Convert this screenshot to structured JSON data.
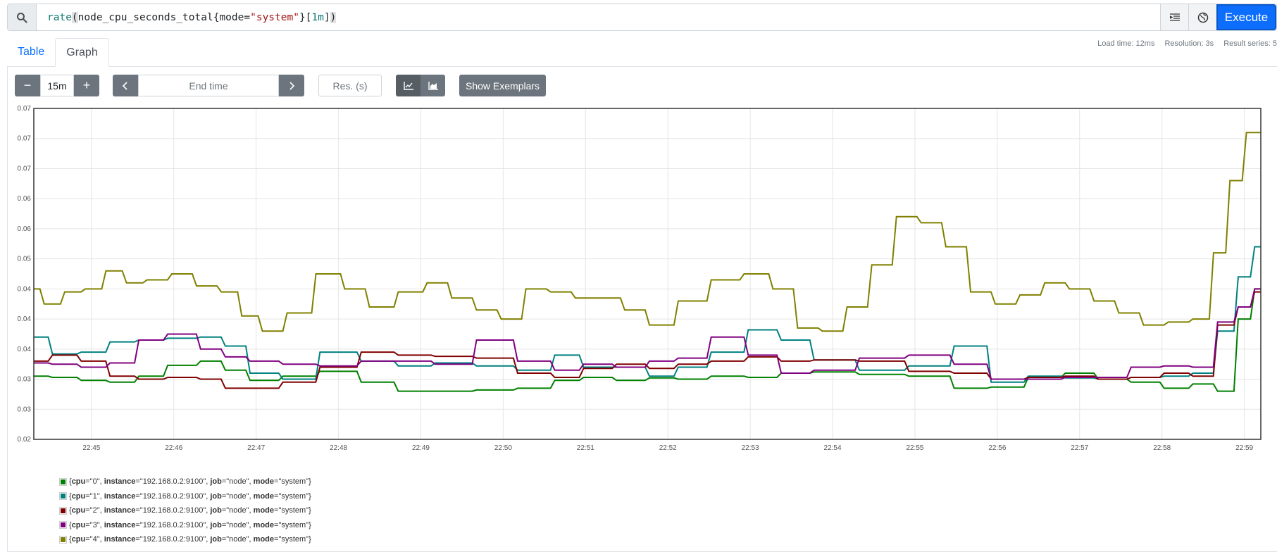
{
  "query": {
    "fn": "rate",
    "metric": "node_cpu_seconds_total",
    "label_key": "mode",
    "label_value": "\"system\"",
    "duration": "1m",
    "execute_label": "Execute",
    "icons": [
      "search-icon",
      "format-icon",
      "metrics-explorer-icon"
    ]
  },
  "tabs": [
    {
      "label": "Table"
    },
    {
      "label": "Graph",
      "active": true
    }
  ],
  "stats": {
    "load_time": "Load time: 12ms",
    "resolution": "Resolution: 3s",
    "result_series": "Result series: 5"
  },
  "controls": {
    "minus": "−",
    "plus": "+",
    "range": "15m",
    "end_time_placeholder": "End time",
    "resolution_placeholder": "Res. (s)",
    "exemplars_label": "Show Exemplars",
    "icons": [
      "chevron-left-icon",
      "chevron-right-icon",
      "line-chart-icon",
      "stacked-chart-icon"
    ]
  },
  "legend": [
    {
      "cpu": "\"0\"",
      "instance": "\"192.168.0.2:9100\"",
      "job": "\"node\"",
      "mode": "\"system\"",
      "color": "#008000"
    },
    {
      "cpu": "\"1\"",
      "instance": "\"192.168.0.2:9100\"",
      "job": "\"node\"",
      "mode": "\"system\"",
      "color": "#008080"
    },
    {
      "cpu": "\"2\"",
      "instance": "\"192.168.0.2:9100\"",
      "job": "\"node\"",
      "mode": "\"system\"",
      "color": "#800000"
    },
    {
      "cpu": "\"3\"",
      "instance": "\"192.168.0.2:9100\"",
      "job": "\"node\"",
      "mode": "\"system\"",
      "color": "#800080"
    },
    {
      "cpu": "\"4\"",
      "instance": "\"192.168.0.2:9100\"",
      "job": "\"node\"",
      "mode": "\"system\"",
      "color": "#808000"
    }
  ],
  "chart_data": {
    "type": "line",
    "y_tick_labels": [
      "0.07",
      "0.07",
      "0.07",
      "0.06",
      "0.06",
      "0.05",
      "0.04",
      "0.04",
      "0.04",
      "0.03",
      "0.03",
      "0.02"
    ],
    "x_tick_labels": [
      "22:45",
      "22:46",
      "22:47",
      "22:48",
      "22:49",
      "22:50",
      "22:51",
      "22:52",
      "22:53",
      "22:54",
      "22:55",
      "22:56",
      "22:57",
      "22:58",
      "22:59"
    ],
    "x_range_minutes": [
      44.3,
      59.2
    ],
    "ylim": [
      0.02,
      0.075
    ],
    "grid": true,
    "series": [
      {
        "color": "#008000",
        "x": [
          44.3,
          44.7,
          45.0,
          45.4,
          45.7,
          46.1,
          46.5,
          46.7,
          47.1,
          47.5,
          48.0,
          48.5,
          48.9,
          49.4,
          49.9,
          50.4,
          50.8,
          51.1,
          51.6,
          51.9,
          52.3,
          52.7,
          53.2,
          53.5,
          54.0,
          54.6,
          55.2,
          55.7,
          56.1,
          56.6,
          57.0,
          57.4,
          57.8,
          58.2,
          58.5,
          58.8,
          59.0,
          59.2
        ],
        "y": [
          0.0305,
          0.0303,
          0.0298,
          0.0295,
          0.0305,
          0.0323,
          0.033,
          0.0315,
          0.0298,
          0.0305,
          0.0313,
          0.0295,
          0.028,
          0.028,
          0.0282,
          0.0285,
          0.0298,
          0.0303,
          0.0298,
          0.0302,
          0.03,
          0.0305,
          0.0303,
          0.031,
          0.0312,
          0.0308,
          0.0305,
          0.0285,
          0.0287,
          0.0303,
          0.031,
          0.03,
          0.0295,
          0.0285,
          0.0292,
          0.028,
          0.04,
          0.045
        ]
      },
      {
        "color": "#008080",
        "x": [
          44.3,
          44.7,
          45.0,
          45.4,
          45.7,
          46.1,
          46.5,
          46.7,
          47.1,
          47.5,
          48.0,
          48.5,
          48.9,
          49.4,
          49.9,
          50.4,
          50.8,
          51.1,
          51.6,
          51.9,
          52.3,
          52.7,
          53.2,
          53.5,
          54.0,
          54.6,
          55.2,
          55.7,
          56.1,
          56.6,
          57.0,
          57.4,
          57.8,
          58.2,
          58.5,
          58.8,
          59.0,
          59.2
        ],
        "y": [
          0.037,
          0.0342,
          0.0345,
          0.0362,
          0.0365,
          0.0368,
          0.037,
          0.0355,
          0.031,
          0.03,
          0.0345,
          0.033,
          0.0322,
          0.0327,
          0.0322,
          0.0315,
          0.034,
          0.032,
          0.032,
          0.0305,
          0.032,
          0.0345,
          0.0382,
          0.0365,
          0.0332,
          0.0315,
          0.0322,
          0.0355,
          0.0295,
          0.0305,
          0.0302,
          0.03,
          0.0303,
          0.0305,
          0.031,
          0.038,
          0.047,
          0.052
        ]
      },
      {
        "color": "#800000",
        "x": [
          44.3,
          44.7,
          45.0,
          45.4,
          45.7,
          46.1,
          46.5,
          46.7,
          47.1,
          47.5,
          48.0,
          48.5,
          48.9,
          49.4,
          49.9,
          50.4,
          50.8,
          51.1,
          51.6,
          51.9,
          52.3,
          52.7,
          53.2,
          53.5,
          54.0,
          54.6,
          55.2,
          55.7,
          56.1,
          56.6,
          57.0,
          57.4,
          57.8,
          58.2,
          58.5,
          58.8,
          59.0,
          59.2
        ],
        "y": [
          0.033,
          0.034,
          0.033,
          0.0305,
          0.03,
          0.0303,
          0.03,
          0.0285,
          0.0285,
          0.0295,
          0.032,
          0.0345,
          0.034,
          0.0338,
          0.0335,
          0.031,
          0.0303,
          0.0318,
          0.0325,
          0.0318,
          0.0325,
          0.033,
          0.0337,
          0.033,
          0.0332,
          0.033,
          0.0313,
          0.031,
          0.03,
          0.0303,
          0.0305,
          0.03,
          0.0303,
          0.031,
          0.0305,
          0.039,
          0.042,
          0.0445
        ]
      },
      {
        "color": "#800080",
        "x": [
          44.3,
          44.7,
          45.0,
          45.4,
          45.7,
          46.1,
          46.5,
          46.7,
          47.1,
          47.5,
          48.0,
          48.5,
          48.9,
          49.4,
          49.9,
          50.4,
          50.8,
          51.1,
          51.6,
          51.9,
          52.3,
          52.7,
          53.2,
          53.5,
          54.0,
          54.6,
          55.2,
          55.7,
          56.1,
          56.6,
          57.0,
          57.4,
          57.8,
          58.2,
          58.5,
          58.8,
          59.0,
          59.2
        ],
        "y": [
          0.0327,
          0.0325,
          0.032,
          0.0327,
          0.0365,
          0.0375,
          0.035,
          0.0337,
          0.033,
          0.0325,
          0.0322,
          0.033,
          0.033,
          0.0325,
          0.0365,
          0.033,
          0.0315,
          0.0325,
          0.032,
          0.033,
          0.0335,
          0.037,
          0.034,
          0.031,
          0.0315,
          0.0335,
          0.034,
          0.0325,
          0.03,
          0.03,
          0.0303,
          0.0303,
          0.032,
          0.0322,
          0.032,
          0.0395,
          0.042,
          0.045
        ]
      },
      {
        "color": "#808000",
        "x": [
          44.3,
          44.5,
          44.8,
          45.0,
          45.3,
          45.5,
          45.8,
          46.1,
          46.4,
          46.7,
          46.9,
          47.2,
          47.5,
          47.9,
          48.2,
          48.5,
          48.9,
          49.2,
          49.5,
          49.8,
          50.1,
          50.4,
          50.7,
          51.0,
          51.3,
          51.6,
          51.9,
          52.3,
          52.7,
          53.1,
          53.4,
          53.7,
          54.0,
          54.3,
          54.6,
          54.9,
          55.2,
          55.5,
          55.8,
          56.1,
          56.4,
          56.7,
          57.0,
          57.3,
          57.6,
          57.9,
          58.2,
          58.5,
          58.7,
          58.9,
          59.1,
          59.2
        ],
        "y": [
          0.045,
          0.0425,
          0.0445,
          0.045,
          0.048,
          0.046,
          0.0465,
          0.0475,
          0.0455,
          0.0445,
          0.0405,
          0.038,
          0.041,
          0.0475,
          0.045,
          0.042,
          0.0445,
          0.046,
          0.0435,
          0.0415,
          0.04,
          0.045,
          0.0445,
          0.0435,
          0.0435,
          0.0415,
          0.039,
          0.043,
          0.0465,
          0.0475,
          0.045,
          0.0385,
          0.038,
          0.042,
          0.049,
          0.057,
          0.056,
          0.052,
          0.0445,
          0.0425,
          0.044,
          0.046,
          0.045,
          0.043,
          0.041,
          0.039,
          0.0395,
          0.04,
          0.051,
          0.063,
          0.071,
          0.071
        ]
      }
    ]
  }
}
